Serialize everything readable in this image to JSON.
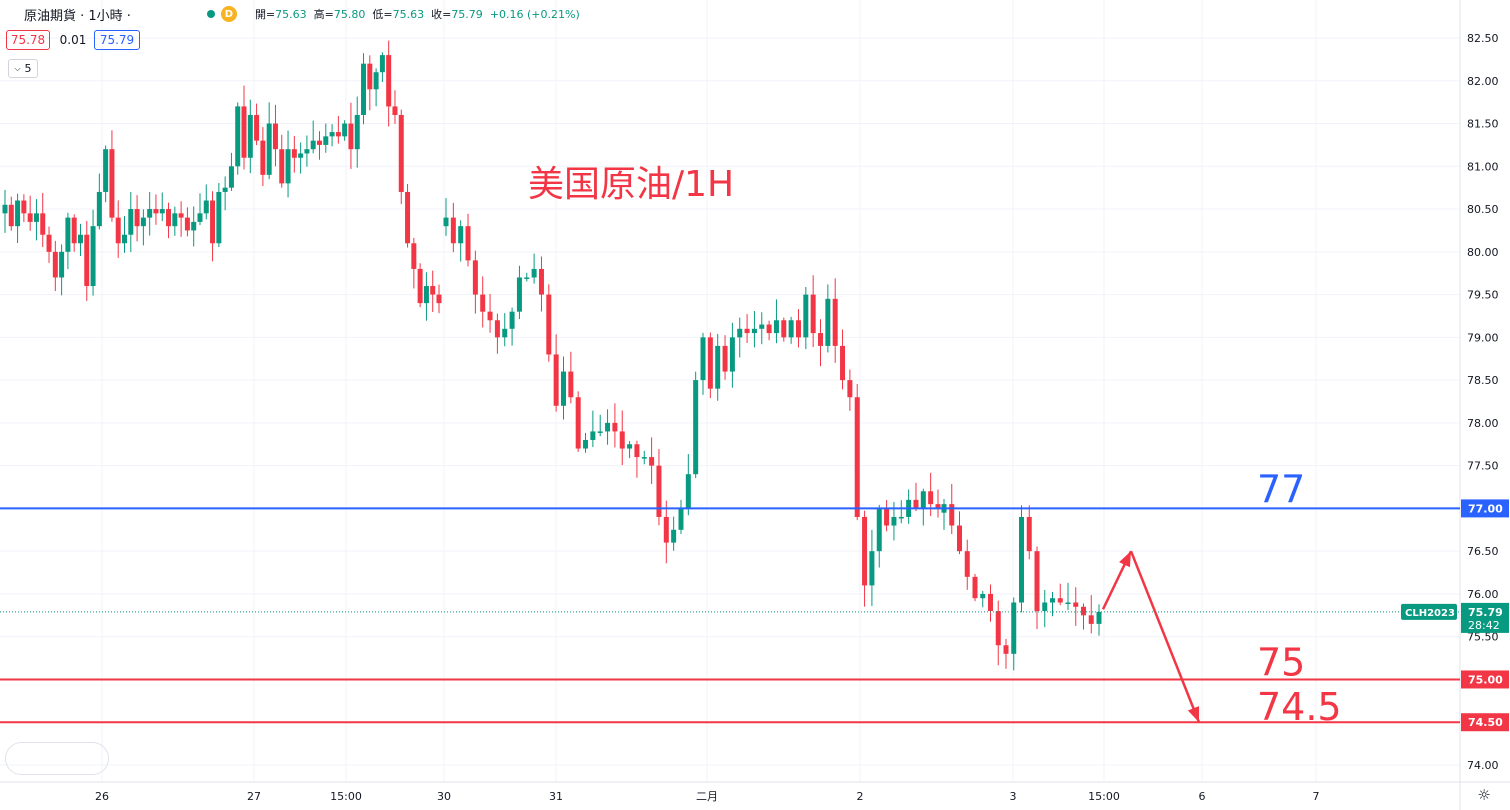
{
  "header": {
    "symbol_label": "原油期貨 · 1小時 ·",
    "badge": "D",
    "open_label": "開=",
    "open": "75.63",
    "high_label": "高=",
    "high": "75.80",
    "low_label": "低=",
    "low": "75.63",
    "close_label": "收=",
    "close": "75.79",
    "change": "+0.16 (+0.21%)"
  },
  "quote": {
    "bid": "75.78",
    "spread": "0.01",
    "ask": "75.79"
  },
  "volume_toggle": {
    "value": "5"
  },
  "colors": {
    "up": "#089981",
    "down": "#f23645",
    "level_77": "#2962ff",
    "level_75": "#f23645",
    "arrow": "#f23645"
  },
  "chart_data": {
    "type": "candlestick",
    "title": "美国原油/1H",
    "ylim": [
      73.75,
      82.75
    ],
    "y_ticks": [
      "82.50",
      "82.00",
      "81.50",
      "81.00",
      "80.50",
      "80.00",
      "79.50",
      "79.00",
      "78.50",
      "78.00",
      "77.50",
      "77.00",
      "76.50",
      "76.00",
      "75.50",
      "75.00",
      "74.50",
      "74.00"
    ],
    "x_labels": [
      "26",
      "27",
      "15:00",
      "30",
      "31",
      "二月",
      "2",
      "3",
      "15:00",
      "6",
      "7"
    ],
    "grid": true,
    "horizontal_levels": [
      {
        "value": 77.0,
        "label": "77",
        "axis_label": "77.00",
        "color": "#2962ff"
      },
      {
        "value": 75.0,
        "label": "75",
        "axis_label": "75.00",
        "color": "#f23645"
      },
      {
        "value": 74.5,
        "label": "74.5",
        "axis_label": "74.50",
        "color": "#f23645"
      }
    ],
    "last_price": {
      "value": 75.79,
      "symbol": "CLH2023",
      "price_label": "75.79",
      "countdown": "28:42"
    },
    "forecast_path": [
      75.82,
      76.5,
      74.5
    ],
    "segments": [
      [
        80.55,
        80.3,
        80.6,
        80.45,
        80.35,
        80.45,
        80.2,
        80.0,
        79.7,
        80.0,
        80.4,
        80.1,
        80.2,
        79.6,
        80.3,
        80.7,
        81.2,
        80.4,
        80.1,
        80.2,
        80.5,
        80.3,
        80.4,
        80.5,
        80.45,
        80.5,
        80.3,
        80.45,
        80.4,
        80.25,
        80.35,
        80.45,
        80.6,
        80.1,
        80.7,
        80.75,
        81.0,
        81.7,
        81.1,
        81.6,
        81.3,
        80.9,
        81.5,
        81.2,
        80.8,
        81.2,
        81.1,
        81.15,
        81.2,
        81.3,
        81.25,
        81.35,
        81.4,
        81.35,
        81.5,
        81.2,
        81.6,
        82.2,
        81.9,
        82.1,
        82.3,
        81.7,
        81.6,
        80.7,
        80.1,
        79.8,
        79.4,
        79.6,
        79.5,
        79.4
      ],
      [
        80.4,
        80.1,
        80.3,
        79.9,
        79.5,
        79.3,
        79.2,
        79.0,
        79.1,
        79.3,
        79.7,
        79.7,
        79.8,
        79.5,
        78.8,
        78.2,
        78.6,
        78.3,
        77.7,
        77.8,
        77.9,
        77.9,
        78.0,
        77.9,
        77.7,
        77.75,
        77.6,
        77.6,
        77.5,
        76.9,
        76.6,
        76.75,
        77.0,
        77.4,
        78.5,
        79.0,
        78.4,
        78.9,
        78.6,
        79.0,
        79.1,
        79.05,
        79.1,
        79.15,
        79.05,
        79.2,
        79.0,
        79.2,
        79.0,
        79.5,
        79.05,
        78.9,
        79.45,
        78.9,
        78.5,
        78.3,
        76.9,
        76.1,
        76.5,
        77.0,
        76.8,
        76.9,
        76.9,
        77.1,
        77.0,
        77.2,
        77.05,
        77.0
      ],
      [
        77.05,
        76.8,
        76.5,
        76.2,
        75.95,
        76.0,
        75.8,
        75.4,
        75.3,
        75.9,
        76.9,
        76.5,
        75.8,
        75.9,
        75.95,
        75.9,
        75.9,
        75.85,
        75.75,
        75.65,
        75.79
      ]
    ]
  }
}
